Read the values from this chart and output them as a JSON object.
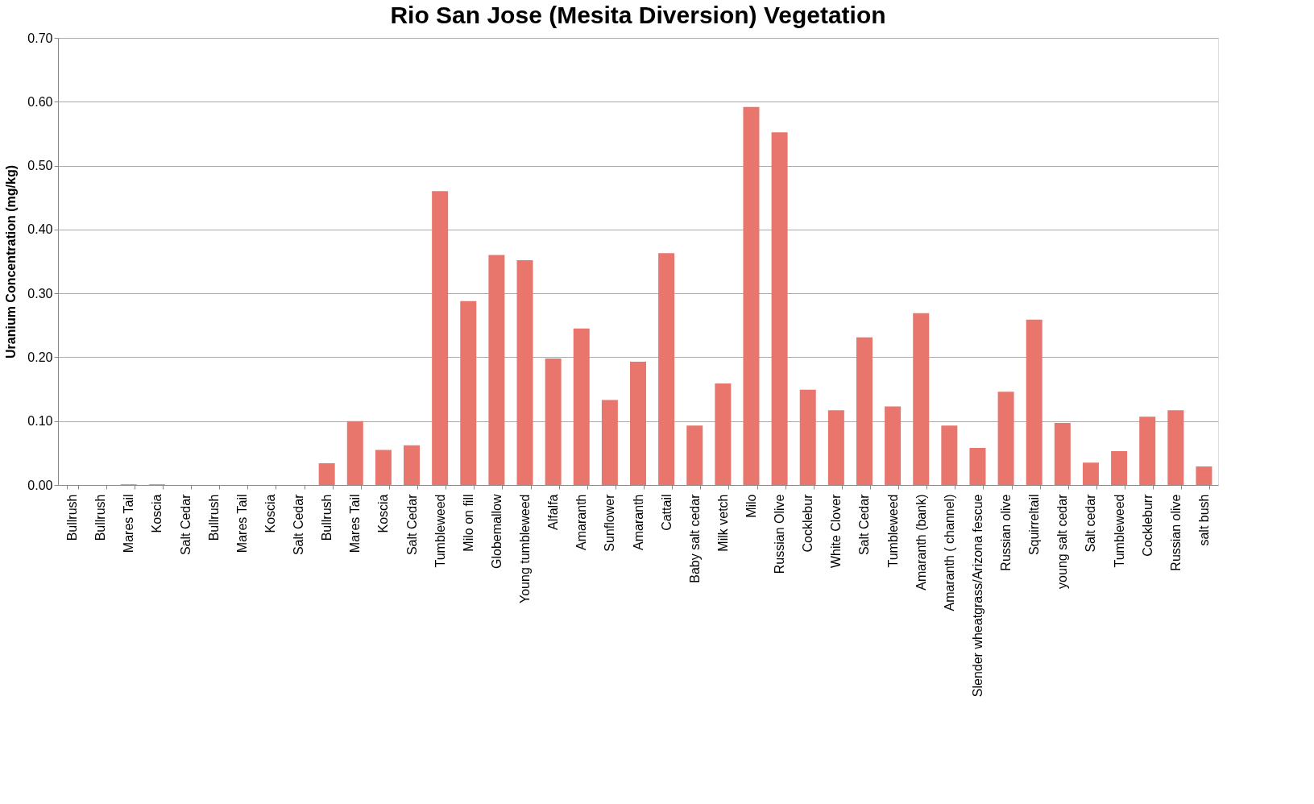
{
  "chart_data": {
    "type": "bar",
    "title": "Rio San Jose (Mesita Diversion) Vegetation",
    "ylabel": "Uranium Concentration (mg/kg)",
    "categories": [
      "Bullrush",
      "Bullrush",
      "Mares Tail",
      "Koscia",
      "Salt Cedar",
      "Bullrush",
      "Mares Tail",
      "Koscia",
      "Salt Cedar",
      "Bullrush",
      "Mares Tail",
      "Koscia",
      "Salt Cedar",
      "Tumbleweed",
      "Milo on fill",
      "Globemallow",
      "Young tumbleweed",
      "Alfalfa",
      "Amaranth",
      "Sunflower",
      "Amaranth",
      "Cattail",
      "Baby salt cedar",
      "Milk vetch",
      "Milo",
      "Russian Olive",
      "Cocklebur",
      "White Clover",
      "Salt Cedar",
      "Tumbleweed",
      "Amaranth (bank)",
      "Amaranth ( channel)",
      "Slender wheatgrass/Arizona fescue",
      "Russian olive",
      "Squirreltail",
      "young salt cedar",
      "Salt cedar",
      "Tumbleweed",
      "Cockleburr",
      "Russian olive",
      "salt bush"
    ],
    "values": [
      0,
      0,
      0.001,
      0.001,
      0,
      0,
      0,
      0,
      0,
      0.034,
      0.1,
      0.055,
      0.062,
      0.46,
      0.288,
      0.36,
      0.352,
      0.198,
      0.245,
      0.133,
      0.193,
      0.363,
      0.093,
      0.159,
      0.592,
      0.552,
      0.149,
      0.117,
      0.231,
      0.123,
      0.269,
      0.093,
      0.058,
      0.146,
      0.259,
      0.097,
      0.035,
      0.053,
      0.107,
      0.117,
      0.029
    ],
    "color": "#e8766d",
    "ylim": [
      0,
      0.7
    ],
    "yticks": [
      {
        "value": 0,
        "label": "0.00"
      },
      {
        "value": 0.1,
        "label": "0.10"
      },
      {
        "value": 0.2,
        "label": "0.20"
      },
      {
        "value": 0.3,
        "label": "0.30"
      },
      {
        "value": 0.4,
        "label": "0.40"
      },
      {
        "value": 0.5,
        "label": "0.50"
      },
      {
        "value": 0.6,
        "label": "0.60"
      },
      {
        "value": 0.7,
        "label": "0.70"
      }
    ],
    "grid": "y"
  }
}
